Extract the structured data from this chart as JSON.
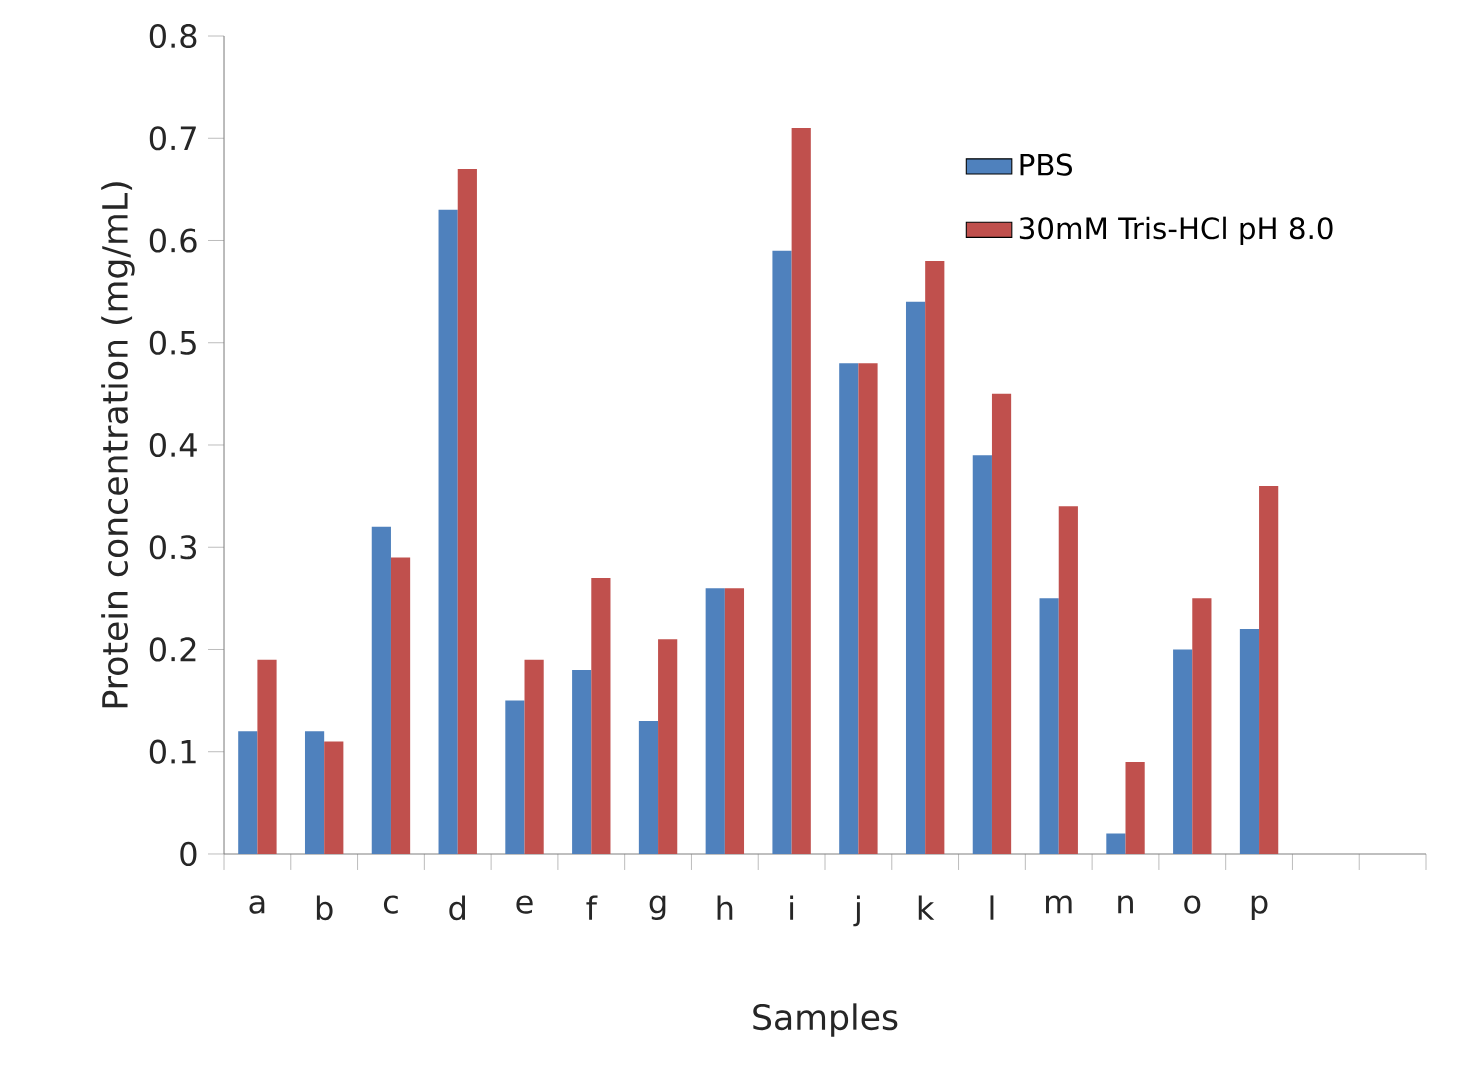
{
  "chart_data": {
    "type": "bar",
    "xlabel": "Samples",
    "ylabel": "Protein concentration (mg/mL)",
    "categories": [
      "a",
      "b",
      "c",
      "d",
      "e",
      "f",
      "g",
      "h",
      "i",
      "j",
      "k",
      "l",
      "m",
      "n",
      "o",
      "p",
      null,
      null
    ],
    "series": [
      {
        "name": "PBS",
        "color": "#4f81bd",
        "values": [
          0.12,
          0.12,
          0.32,
          0.63,
          0.15,
          0.18,
          0.13,
          0.26,
          0.59,
          0.48,
          0.54,
          0.39,
          0.25,
          0.02,
          0.2,
          0.22,
          null,
          null
        ]
      },
      {
        "name": "30mM Tris-HCl  pH 8.0",
        "color": "#c0504d",
        "values": [
          0.19,
          0.11,
          0.29,
          0.67,
          0.19,
          0.27,
          0.21,
          0.26,
          0.71,
          0.48,
          0.58,
          0.45,
          0.34,
          0.09,
          0.25,
          0.36,
          null,
          null
        ]
      }
    ],
    "ylim": [
      0,
      0.8
    ],
    "yticks": [
      0,
      0.1,
      0.2,
      0.3,
      0.4,
      0.5,
      0.6,
      0.7,
      0.8
    ],
    "legend": "top right"
  }
}
